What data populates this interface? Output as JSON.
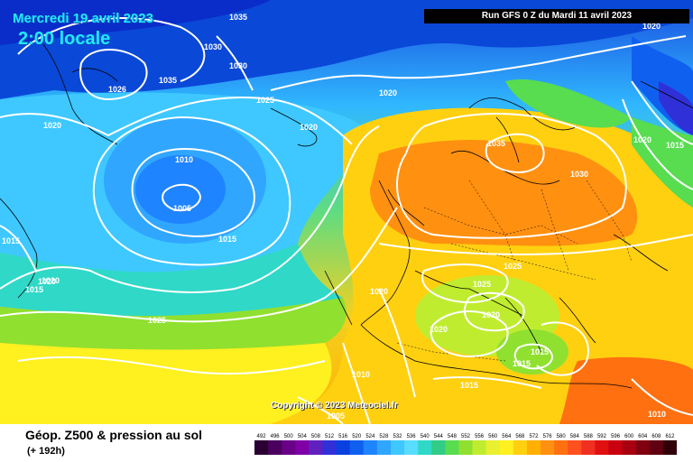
{
  "header": {
    "date": "Mercredi 19 avril 2023",
    "time": "2:00 locale",
    "run": "Run GFS 0 Z du Mardi 11 avril 2023"
  },
  "credit": "Copyright © 2023 Meteociel.fr",
  "footer": {
    "product": "Géop. Z500 & pression au sol",
    "range": "(+ 192h)"
  },
  "isobars": [
    "1035",
    "1030",
    "1030",
    "1026",
    "1035",
    "1025",
    "1020",
    "1020",
    "1020",
    "1010",
    "1005",
    "1015",
    "1015",
    "1015",
    "1020",
    "1025",
    "1020",
    "1025",
    "1025",
    "1020",
    "1020",
    "1035",
    "1030",
    "1020",
    "1015",
    "1020",
    "1015",
    "1015",
    "1010",
    "1015",
    "1005",
    "1010",
    "1020"
  ],
  "scale": {
    "ticks": [
      "492",
      "496",
      "500",
      "504",
      "508",
      "512",
      "516",
      "520",
      "524",
      "528",
      "532",
      "536",
      "540",
      "544",
      "548",
      "552",
      "556",
      "560",
      "564",
      "568",
      "572",
      "576",
      "580",
      "584",
      "588",
      "592",
      "596",
      "600",
      "604",
      "608",
      "612"
    ],
    "colors": [
      "#2a0033",
      "#4b0060",
      "#6a0088",
      "#8000a8",
      "#6020c0",
      "#3030d8",
      "#0a40e0",
      "#1060f0",
      "#1e84ff",
      "#30a6ff",
      "#3ec8ff",
      "#58dcff",
      "#30d8c8",
      "#30cc88",
      "#58dc50",
      "#90e030",
      "#c0ec30",
      "#e8f030",
      "#fff020",
      "#ffd010",
      "#ffb000",
      "#ff9010",
      "#ff7010",
      "#ff5020",
      "#f03020",
      "#e01010",
      "#c80010",
      "#a80010",
      "#800010",
      "#600010",
      "#300008"
    ]
  }
}
